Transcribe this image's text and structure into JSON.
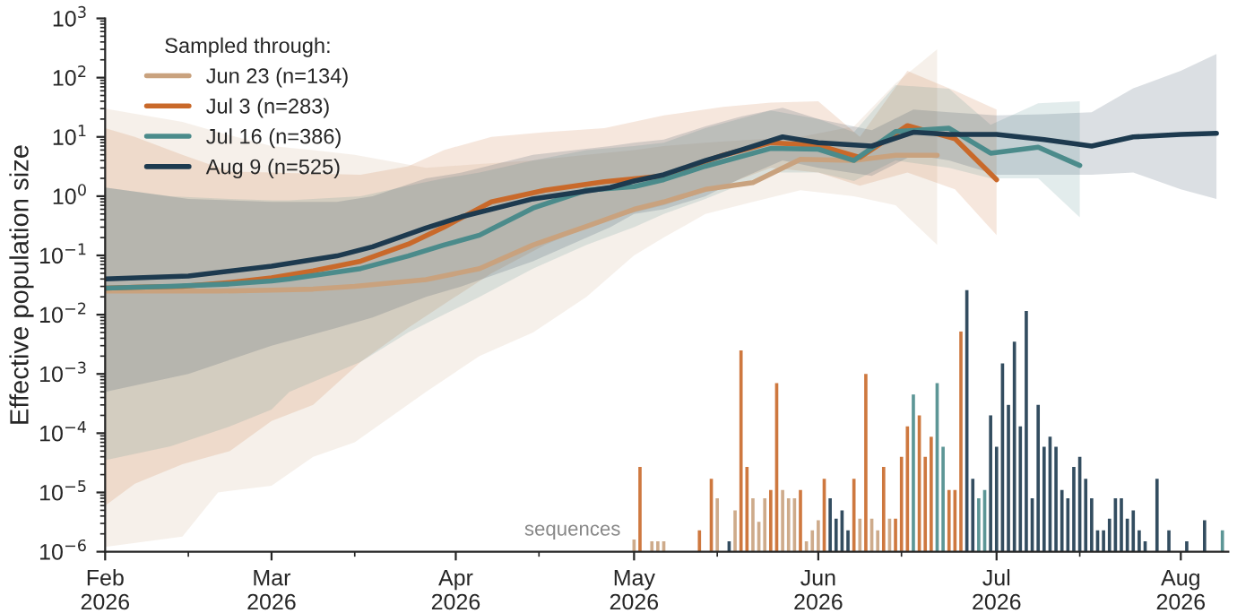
{
  "chart_data": {
    "type": "line",
    "ylabel": "Effective population size",
    "legend_title": "Sampled through:",
    "legend": "top left",
    "log": "y",
    "grid": false,
    "line_style": "solid",
    "marker": "none",
    "xlim": [
      "2026-02-01",
      "2026-08-09"
    ],
    "xticks": [
      {
        "value": "2026-02-01",
        "label": "Feb\n2026"
      },
      {
        "value": "2026-03-01",
        "label": "Mar\n2026"
      },
      {
        "value": "2026-04-01",
        "label": "Apr\n2026"
      },
      {
        "value": "2026-05-01",
        "label": "May\n2026"
      },
      {
        "value": "2026-06-01",
        "label": "Jun\n2026"
      },
      {
        "value": "2026-07-01",
        "label": "Jul\n2026"
      },
      {
        "value": "2026-08-01",
        "label": "Aug\n2026"
      }
    ],
    "ylim": [
      1e-06,
      1000
    ],
    "yticks": [
      {
        "value": 1e-06,
        "label": "10$^{−6}$"
      },
      {
        "value": 1e-05,
        "label": "10$^{−5}$"
      },
      {
        "value": 0.0001,
        "label": "10$^{−4}$"
      },
      {
        "value": 0.001,
        "label": "10$^{−3}$"
      },
      {
        "value": 0.01,
        "label": "10$^{−2}$"
      },
      {
        "value": 0.1,
        "label": "10$^{−1}$"
      },
      {
        "value": 1,
        "label": "10$^{0}$"
      },
      {
        "value": 10,
        "label": "10$^{1}$"
      },
      {
        "value": 100,
        "label": "10$^{2}$"
      },
      {
        "value": 1000,
        "label": "10$^{3}$"
      }
    ],
    "annotations": [
      {
        "text": "sequences",
        "x": "2026-04-30",
        "y": 1.6e-06
      }
    ],
    "series": [
      {
        "name": "Jun 23 (n=134)",
        "color": "#c9a27e",
        "x": [
          "2026-02-01",
          "2026-02-14",
          "2026-02-20",
          "2026-03-01",
          "2026-03-08",
          "2026-03-15",
          "2026-03-27",
          "2026-04-05",
          "2026-04-14",
          "2026-04-23",
          "2026-05-01",
          "2026-05-06",
          "2026-05-13",
          "2026-05-21",
          "2026-05-29",
          "2026-06-07",
          "2026-06-14",
          "2026-06-21"
        ],
        "values": [
          0.025,
          0.025,
          0.025,
          0.026,
          0.027,
          0.03,
          0.039,
          0.06,
          0.15,
          0.31,
          0.6,
          0.8,
          1.3,
          1.7,
          4.2,
          4,
          4.9,
          4.9
        ],
        "lower": [
          1.2e-06,
          1.8e-06,
          1e-05,
          1.3e-05,
          4e-05,
          7e-05,
          0.0005,
          0.002,
          0.005,
          0.02,
          0.1,
          0.2,
          0.5,
          0.8,
          1.26,
          1,
          0.7,
          0.15
        ],
        "upper": [
          30,
          18,
          12,
          7,
          6,
          5,
          3,
          3.5,
          4,
          5,
          6,
          7,
          8,
          9,
          10,
          15,
          80,
          300
        ]
      },
      {
        "name": "Jul 3 (n=283)",
        "color": "#c9692a",
        "x": [
          "2026-02-01",
          "2026-02-06",
          "2026-02-14",
          "2026-02-22",
          "2026-03-01",
          "2026-03-08",
          "2026-03-16",
          "2026-03-24",
          "2026-03-30",
          "2026-04-07",
          "2026-04-16",
          "2026-04-26",
          "2026-05-06",
          "2026-05-16",
          "2026-05-24",
          "2026-06-01",
          "2026-06-08",
          "2026-06-16",
          "2026-06-24",
          "2026-07-01"
        ],
        "values": [
          0.028,
          0.029,
          0.03,
          0.035,
          0.042,
          0.055,
          0.08,
          0.155,
          0.3,
          0.8,
          1.26,
          1.75,
          2.2,
          4.9,
          8,
          7.2,
          4.5,
          15.5,
          9.3,
          1.9
        ],
        "lower": [
          6e-06,
          1.4e-05,
          3e-05,
          5e-05,
          0.00016,
          0.0003,
          0.0016,
          0.006,
          0.015,
          0.05,
          0.15,
          0.4,
          0.7,
          1.5,
          3,
          2.5,
          1.5,
          2.5,
          1.3,
          0.22
        ],
        "upper": [
          14,
          10,
          5,
          2.6,
          2.5,
          2.4,
          2.3,
          3.2,
          6,
          10,
          12,
          14,
          23,
          32,
          38,
          40,
          10,
          130,
          60,
          29
        ]
      },
      {
        "name": "Jul 16 (n=386)",
        "color": "#4b8b8b",
        "x": [
          "2026-02-01",
          "2026-02-12",
          "2026-02-22",
          "2026-03-01",
          "2026-03-04",
          "2026-03-16",
          "2026-03-24",
          "2026-03-30",
          "2026-04-05",
          "2026-04-14",
          "2026-04-23",
          "2026-05-01",
          "2026-05-06",
          "2026-05-13",
          "2026-05-24",
          "2026-06-01",
          "2026-06-07",
          "2026-06-14",
          "2026-06-23",
          "2026-06-30",
          "2026-07-08",
          "2026-07-15"
        ],
        "values": [
          0.028,
          0.03,
          0.033,
          0.037,
          0.04,
          0.06,
          0.098,
          0.15,
          0.22,
          0.63,
          1.26,
          1.45,
          1.9,
          3.2,
          6.4,
          6.2,
          4,
          12.3,
          14,
          5.3,
          6.7,
          3.3
        ],
        "lower": [
          3.5e-05,
          6e-05,
          0.00013,
          0.00025,
          0.0005,
          0.0016,
          0.005,
          0.01,
          0.02,
          0.06,
          0.15,
          0.3,
          0.5,
          0.9,
          2.5,
          2.5,
          1.8,
          4,
          3,
          2,
          2,
          0.44
        ],
        "upper": [
          1.4,
          1,
          0.9,
          0.85,
          0.85,
          1,
          1.5,
          2,
          2.5,
          4,
          6,
          7,
          8,
          14,
          28,
          20,
          12,
          75,
          65,
          16,
          37,
          40
        ]
      },
      {
        "name": "Aug 9 (n=525)",
        "color": "#1d3a4f",
        "x": [
          "2026-02-01",
          "2026-02-15",
          "2026-03-01",
          "2026-03-12",
          "2026-03-18",
          "2026-03-27",
          "2026-04-02",
          "2026-04-14",
          "2026-04-27",
          "2026-05-01",
          "2026-05-06",
          "2026-05-13",
          "2026-05-19",
          "2026-05-26",
          "2026-06-01",
          "2026-06-10",
          "2026-06-17",
          "2026-06-23",
          "2026-07-01",
          "2026-07-09",
          "2026-07-17",
          "2026-07-24",
          "2026-08-01",
          "2026-08-07"
        ],
        "values": [
          0.04,
          0.045,
          0.066,
          0.098,
          0.14,
          0.29,
          0.45,
          0.9,
          1.4,
          1.8,
          2.3,
          4,
          6,
          10,
          8,
          7,
          12,
          11,
          11,
          9,
          7,
          10,
          11,
          11.5
        ],
        "lower": [
          0.0005,
          0.001,
          0.003,
          0.006,
          0.009,
          0.02,
          0.03,
          0.08,
          0.3,
          0.5,
          0.6,
          1,
          2,
          4,
          3,
          2.2,
          5,
          4,
          2.3,
          2.3,
          2.3,
          2.5,
          1.3,
          0.9
        ],
        "upper": [
          1.4,
          0.9,
          0.8,
          0.8,
          1,
          2,
          2.5,
          5,
          7,
          8,
          9,
          15,
          22,
          31,
          20,
          13,
          29,
          26,
          23,
          24,
          26,
          66,
          130,
          250
        ]
      },
      {
        "type": "bar",
        "color": "#c9a27e",
        "x": [
          "2026-05-01",
          "2026-05-04",
          "2026-05-05",
          "2026-05-06",
          "2026-05-15",
          "2026-05-18",
          "2026-05-21",
          "2026-05-22",
          "2026-05-23",
          "2026-05-26",
          "2026-05-27",
          "2026-05-28",
          "2026-05-30",
          "2026-05-31",
          "2026-06-01",
          "2026-06-08",
          "2026-06-10",
          "2026-06-11",
          "2026-06-13"
        ],
        "values": [
          1.6e-06,
          1.5e-06,
          1.5e-06,
          1.5e-06,
          8e-06,
          5e-06,
          8e-06,
          3.2e-06,
          8e-06,
          1.1e-05,
          8e-06,
          8e-06,
          1.5e-06,
          2.3e-06,
          3.4e-06,
          3.6e-06,
          3.6e-06,
          2.3e-06,
          3.6e-06
        ]
      },
      {
        "type": "bar",
        "color": "#c9692a",
        "x": [
          "2026-05-02",
          "2026-05-12",
          "2026-05-14",
          "2026-05-19",
          "2026-05-20",
          "2026-05-24",
          "2026-05-25",
          "2026-05-29",
          "2026-06-02",
          "2026-06-07",
          "2026-06-09",
          "2026-06-12",
          "2026-06-14",
          "2026-06-15",
          "2026-06-16",
          "2026-06-18",
          "2026-06-19",
          "2026-06-20",
          "2026-06-23",
          "2026-06-24",
          "2026-06-25"
        ],
        "values": [
          2.7e-05,
          2.3e-06,
          1.7e-05,
          0.0025,
          2.7e-05,
          1.1e-05,
          0.0007,
          1.1e-05,
          1.7e-05,
          1.7e-05,
          0.001,
          2.7e-05,
          3.6e-06,
          4e-05,
          0.00013,
          0.0002,
          4e-05,
          8.7e-05,
          1.1e-05,
          1.1e-05,
          0.0052
        ]
      },
      {
        "type": "bar",
        "color": "#4b8b8b",
        "x": [
          "2026-06-17",
          "2026-06-21",
          "2026-06-22",
          "2026-06-28",
          "2026-06-29",
          "2026-08-08"
        ],
        "values": [
          0.00045,
          0.0007,
          5.9e-05,
          8e-06,
          1.1e-05,
          2.3e-06
        ]
      },
      {
        "type": "bar",
        "color": "#1d3a4f",
        "x": [
          "2026-05-17",
          "2026-06-03",
          "2026-06-04",
          "2026-06-05",
          "2026-06-06",
          "2026-06-26",
          "2026-06-27",
          "2026-06-30",
          "2026-07-01",
          "2026-07-02",
          "2026-07-03",
          "2026-07-04",
          "2026-07-05",
          "2026-07-06",
          "2026-07-07",
          "2026-07-08",
          "2026-07-09",
          "2026-07-10",
          "2026-07-11",
          "2026-07-12",
          "2026-07-13",
          "2026-07-14",
          "2026-07-15",
          "2026-07-16",
          "2026-07-17",
          "2026-07-18",
          "2026-07-19",
          "2026-07-20",
          "2026-07-21",
          "2026-07-22",
          "2026-07-23",
          "2026-07-24",
          "2026-07-25",
          "2026-07-26",
          "2026-07-28",
          "2026-07-30",
          "2026-08-02",
          "2026-08-05"
        ],
        "values": [
          1.5e-06,
          8e-06,
          3.6e-06,
          5e-06,
          2.3e-06,
          0.026,
          1.7e-05,
          0.0002,
          5.9e-05,
          0.0015,
          0.0003,
          0.0035,
          0.00013,
          0.0115,
          8e-06,
          0.0003,
          5.9e-05,
          8.7e-05,
          5.9e-05,
          1.1e-05,
          8e-06,
          2.7e-05,
          4e-05,
          1.7e-05,
          8e-06,
          2.3e-06,
          2.3e-06,
          3.6e-06,
          8e-06,
          8e-06,
          3.6e-06,
          5e-06,
          2.3e-06,
          1.5e-06,
          1.7e-05,
          2.3e-06,
          1.5e-06,
          3.4e-06
        ]
      }
    ]
  }
}
